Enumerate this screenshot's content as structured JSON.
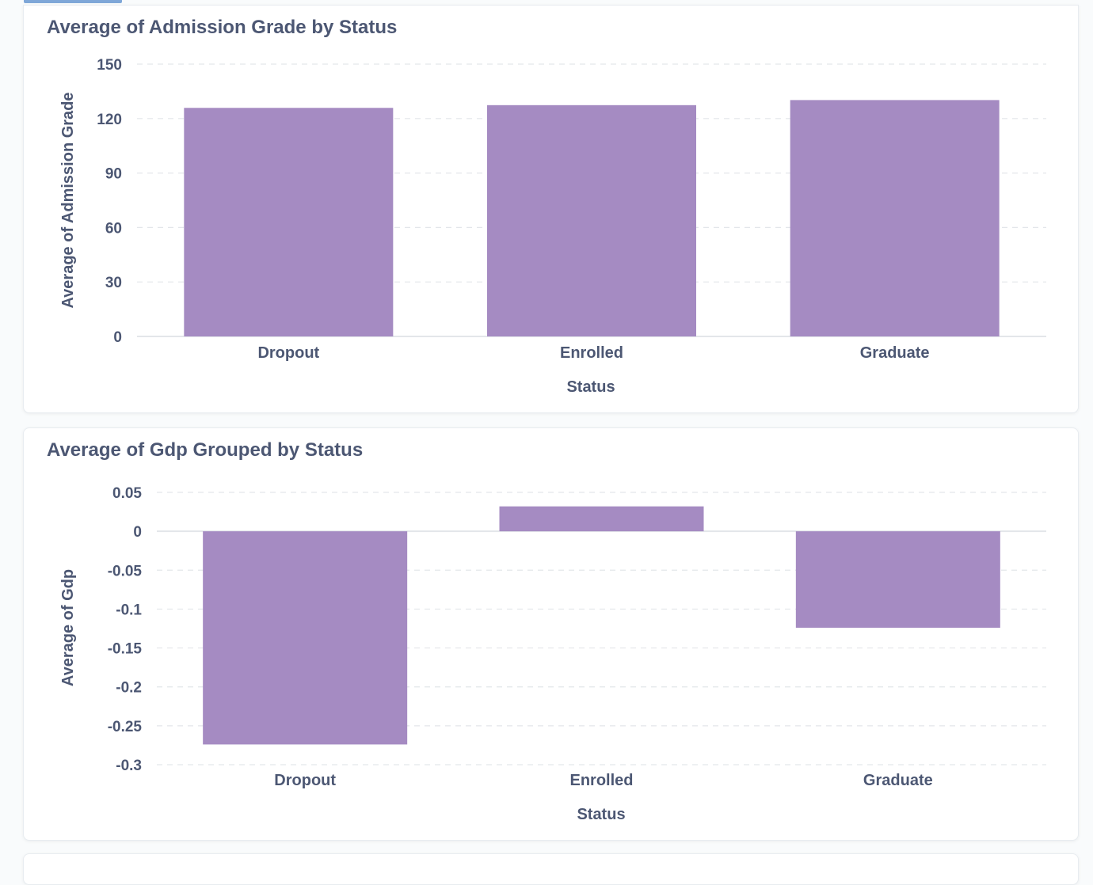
{
  "colors": {
    "bar": "#a58bc2",
    "grid": "#e3e6ea",
    "baseline": "#e3e6ea",
    "text": "#4c5773",
    "accent": "#7fa7d8"
  },
  "chart_data": [
    {
      "type": "bar",
      "title": "Average of Admission Grade by Status",
      "categories": [
        "Dropout",
        "Enrolled",
        "Graduate"
      ],
      "values": [
        125.9,
        127.4,
        130.2
      ],
      "xlabel": "Status",
      "ylabel": "Average of Admission Grade",
      "ylim": [
        0,
        150
      ],
      "yticks": [
        0,
        30,
        60,
        90,
        120,
        150
      ],
      "ytick_labels": [
        "0",
        "30",
        "60",
        "90",
        "120",
        "150"
      ],
      "grid": true
    },
    {
      "type": "bar",
      "title": "Average of Gdp Grouped by Status",
      "categories": [
        "Dropout",
        "Enrolled",
        "Graduate"
      ],
      "values": [
        -0.274,
        0.032,
        -0.124
      ],
      "xlabel": "Status",
      "ylabel": "Average of Gdp",
      "ylim": [
        -0.3,
        0.05
      ],
      "yticks": [
        -0.3,
        -0.25,
        -0.2,
        -0.15,
        -0.1,
        -0.05,
        0,
        0.05
      ],
      "ytick_labels": [
        "-0.3",
        "-0.25",
        "-0.2",
        "-0.15",
        "-0.1",
        "-0.05",
        "0",
        "0.05"
      ],
      "grid": true
    }
  ]
}
